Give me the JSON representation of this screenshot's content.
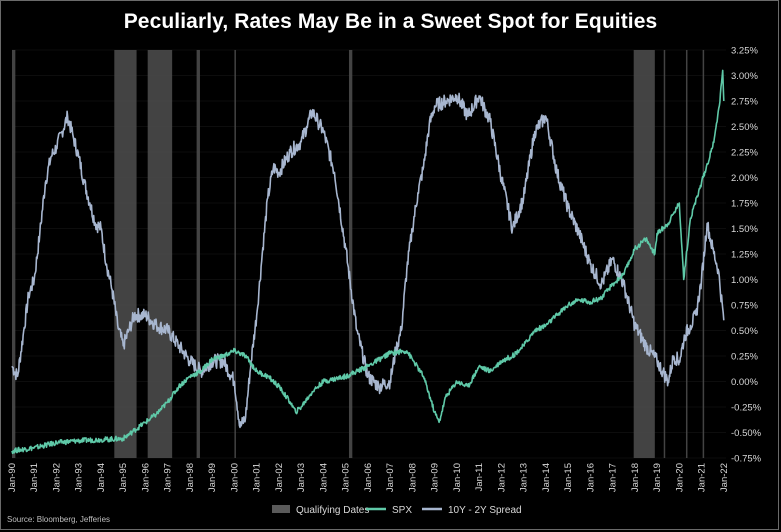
{
  "title": "Peculiarly, Rates May Be in a Sweet Spot for Equities",
  "source": "Source: Bloomberg, Jefferies",
  "colors": {
    "background": "#000000",
    "spx": "#5fc9a8",
    "spread": "#a7b6cf",
    "qualifying": "#5a5a5a",
    "gridline": "#4a4a4a"
  },
  "chart_data": {
    "type": "line",
    "title": "Peculiarly, Rates May Be in a Sweet Spot for Equities",
    "y_axis_side": "right",
    "ylim": [
      -0.75,
      3.25
    ],
    "y_ticks": [
      "3.25%",
      "3.00%",
      "2.75%",
      "2.50%",
      "2.25%",
      "2.00%",
      "1.75%",
      "1.50%",
      "1.25%",
      "1.00%",
      "0.75%",
      "0.50%",
      "0.25%",
      "0.00%",
      "-0.25%",
      "-0.50%",
      "-0.75%"
    ],
    "y_tick_values": [
      3.25,
      3.0,
      2.75,
      2.5,
      2.25,
      2.0,
      1.75,
      1.5,
      1.25,
      1.0,
      0.75,
      0.5,
      0.25,
      0.0,
      -0.25,
      -0.5,
      -0.75
    ],
    "xlim": [
      1990.0,
      2022.1
    ],
    "x_ticks": [
      "Jan-90",
      "Jan-91",
      "Jan-92",
      "Jan-93",
      "Jan-94",
      "Jan-95",
      "Jan-96",
      "Jan-97",
      "Jan-98",
      "Jan-99",
      "Jan-00",
      "Jan-01",
      "Jan-02",
      "Jan-03",
      "Jan-04",
      "Jan-05",
      "Jan-06",
      "Jan-07",
      "Jan-08",
      "Jan-09",
      "Jan-10",
      "Jan-11",
      "Jan-12",
      "Jan-13",
      "Jan-14",
      "Jan-15",
      "Jan-16",
      "Jan-17",
      "Jan-18",
      "Jan-19",
      "Jan-20",
      "Jan-21",
      "Jan-22"
    ],
    "x_tick_values": [
      1990,
      1991,
      1992,
      1993,
      1994,
      1995,
      1996,
      1997,
      1998,
      1999,
      2000,
      2001,
      2002,
      2003,
      2004,
      2005,
      2006,
      2007,
      2008,
      2009,
      2010,
      2011,
      2012,
      2013,
      2014,
      2015,
      2016,
      2017,
      2018,
      2019,
      2020,
      2021,
      2022
    ],
    "legend": [
      "Qualifying Dates",
      "SPX",
      "10Y - 2Y Spread"
    ],
    "legend_position": "bottom-center",
    "series": [
      {
        "name": "10Y - 2Y Spread",
        "x": [
          1990.0,
          1990.25,
          1990.5,
          1990.75,
          1991.0,
          1991.25,
          1991.5,
          1991.75,
          1992.0,
          1992.25,
          1992.5,
          1992.75,
          1993.0,
          1993.25,
          1993.5,
          1993.75,
          1994.0,
          1994.25,
          1994.5,
          1994.75,
          1995.0,
          1995.25,
          1995.5,
          1995.75,
          1996.0,
          1996.5,
          1997.0,
          1997.5,
          1998.0,
          1998.5,
          1999.0,
          1999.5,
          2000.0,
          2000.25,
          2000.5,
          2000.75,
          2001.0,
          2001.25,
          2001.5,
          2001.75,
          2002.0,
          2002.5,
          2003.0,
          2003.25,
          2003.5,
          2003.75,
          2004.0,
          2004.5,
          2005.0,
          2005.5,
          2006.0,
          2006.5,
          2007.0,
          2007.25,
          2007.5,
          2007.75,
          2008.0,
          2008.25,
          2008.5,
          2008.75,
          2009.0,
          2009.5,
          2010.0,
          2010.5,
          2011.0,
          2011.5,
          2012.0,
          2012.5,
          2013.0,
          2013.5,
          2014.0,
          2014.5,
          2015.0,
          2015.5,
          2016.0,
          2016.5,
          2017.0,
          2017.5,
          2018.0,
          2018.5,
          2019.0,
          2019.25,
          2019.5,
          2019.75,
          2020.0,
          2020.25,
          2020.5,
          2020.75,
          2021.0,
          2021.25,
          2021.5,
          2021.75,
          2022.0
        ],
        "values": [
          0.15,
          0.05,
          0.45,
          0.85,
          1.0,
          1.45,
          1.95,
          2.2,
          2.3,
          2.45,
          2.6,
          2.4,
          2.2,
          1.95,
          1.75,
          1.55,
          1.5,
          1.15,
          0.9,
          0.55,
          0.35,
          0.5,
          0.65,
          0.65,
          0.65,
          0.55,
          0.5,
          0.35,
          0.2,
          0.1,
          0.2,
          0.2,
          0.0,
          -0.45,
          -0.35,
          0.2,
          0.65,
          1.25,
          1.8,
          2.1,
          2.05,
          2.25,
          2.35,
          2.5,
          2.65,
          2.55,
          2.45,
          2.05,
          1.3,
          0.5,
          0.05,
          -0.05,
          0.0,
          0.3,
          0.5,
          1.1,
          1.5,
          1.85,
          2.1,
          2.5,
          2.7,
          2.75,
          2.8,
          2.6,
          2.8,
          2.55,
          2.0,
          1.5,
          1.8,
          2.45,
          2.6,
          2.05,
          1.7,
          1.45,
          1.15,
          0.95,
          1.2,
          0.95,
          0.55,
          0.35,
          0.2,
          0.1,
          0.0,
          0.25,
          0.2,
          0.45,
          0.55,
          0.65,
          1.0,
          1.55,
          1.3,
          1.1,
          0.6
        ]
      },
      {
        "name": "SPX",
        "x": [
          1990.0,
          1991.0,
          1992.0,
          1993.0,
          1994.0,
          1995.0,
          1995.5,
          1996.0,
          1996.5,
          1997.0,
          1997.5,
          1998.0,
          1998.5,
          1999.0,
          1999.5,
          2000.0,
          2000.5,
          2001.0,
          2001.5,
          2002.0,
          2002.5,
          2002.75,
          2003.0,
          2003.5,
          2004.0,
          2005.0,
          2006.0,
          2007.0,
          2007.75,
          2008.5,
          2009.0,
          2009.2,
          2009.5,
          2010.0,
          2010.5,
          2011.0,
          2011.5,
          2012.0,
          2012.5,
          2013.0,
          2013.5,
          2014.0,
          2014.5,
          2015.0,
          2015.5,
          2016.0,
          2016.5,
          2017.0,
          2017.5,
          2018.0,
          2018.5,
          2018.9,
          2019.0,
          2019.5,
          2020.0,
          2020.15,
          2020.2,
          2020.5,
          2021.0,
          2021.5,
          2021.8,
          2021.95,
          2022.0
        ],
        "values": [
          -0.68,
          -0.65,
          -0.6,
          -0.58,
          -0.57,
          -0.56,
          -0.48,
          -0.4,
          -0.32,
          -0.2,
          -0.05,
          0.05,
          0.1,
          0.22,
          0.25,
          0.3,
          0.25,
          0.1,
          0.05,
          -0.05,
          -0.2,
          -0.3,
          -0.25,
          -0.1,
          0.0,
          0.05,
          0.15,
          0.28,
          0.3,
          0.05,
          -0.3,
          -0.4,
          -0.15,
          0.0,
          -0.05,
          0.15,
          0.1,
          0.2,
          0.25,
          0.35,
          0.5,
          0.55,
          0.65,
          0.75,
          0.8,
          0.78,
          0.82,
          0.95,
          1.05,
          1.3,
          1.4,
          1.25,
          1.45,
          1.55,
          1.75,
          1.2,
          1.0,
          1.6,
          1.95,
          2.3,
          2.7,
          3.05,
          2.75
        ]
      }
    ],
    "qualifying_periods": [
      [
        1990.0,
        1990.15
      ],
      [
        1994.6,
        1995.6
      ],
      [
        1996.1,
        1997.2
      ],
      [
        1998.3,
        1998.45
      ],
      [
        2000.0,
        2000.05
      ],
      [
        2005.15,
        2005.3
      ],
      [
        2017.95,
        2018.9
      ],
      [
        2019.3,
        2019.35
      ],
      [
        2020.3,
        2020.35
      ],
      [
        2021.05,
        2021.1
      ]
    ]
  }
}
